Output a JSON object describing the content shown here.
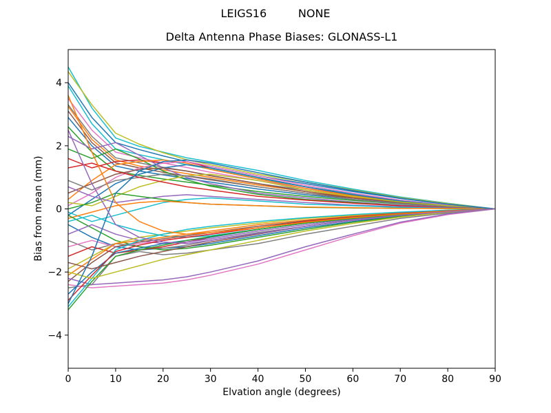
{
  "figure": {
    "suptitle": "LEIGS16         NONE",
    "background": "#ffffff"
  },
  "chart_data": {
    "type": "line",
    "title": "Delta Antenna Phase Biases: GLONASS-L1",
    "xlabel": "Elvation angle (degrees)",
    "ylabel": "Bias from mean (mm)",
    "xlim": [
      0,
      90
    ],
    "ylim": [
      -5.05,
      5.05
    ],
    "xticks": [
      0,
      10,
      20,
      30,
      40,
      50,
      60,
      70,
      80,
      90
    ],
    "yticks": [
      -4,
      -2,
      0,
      2,
      4
    ],
    "ytick_labels": [
      "−4",
      "−2",
      "0",
      "2",
      "4"
    ],
    "grid": false,
    "legend": "none",
    "axis_color": "#000000",
    "line_width": 1.5,
    "description": "Many colored phase-bias curves, one per GLONASS satellite/antenna pair, spread between about -3.2 and +4.5 mm at 0 degrees elevation and converging to 0 mm at 90 degrees.",
    "x": [
      0,
      5,
      10,
      15,
      20,
      25,
      30,
      40,
      50,
      60,
      70,
      80,
      90
    ],
    "series": [
      {
        "color": "#17becf",
        "values": [
          4.5,
          3.2,
          2.25,
          1.98,
          1.8,
          1.62,
          1.49,
          1.22,
          0.9,
          0.63,
          0.38,
          0.18,
          0
        ]
      },
      {
        "color": "#bcbd22",
        "values": [
          4.35,
          3.3,
          2.4,
          2.05,
          1.78,
          1.56,
          1.4,
          1.1,
          0.85,
          0.6,
          0.36,
          0.17,
          0
        ]
      },
      {
        "color": "#1f77b4",
        "values": [
          4.0,
          2.9,
          2.1,
          1.88,
          1.68,
          1.5,
          1.35,
          1.05,
          0.8,
          0.55,
          0.33,
          0.15,
          0
        ]
      },
      {
        "color": "#17becf",
        "values": [
          3.9,
          2.7,
          1.9,
          1.72,
          1.56,
          1.4,
          1.26,
          0.96,
          0.7,
          0.48,
          0.28,
          0.13,
          0
        ]
      },
      {
        "color": "#e377c2",
        "values": [
          3.5,
          2.5,
          1.8,
          1.62,
          1.46,
          1.31,
          1.16,
          0.9,
          0.65,
          0.45,
          0.26,
          0.12,
          0
        ]
      },
      {
        "color": "#7f7f7f",
        "values": [
          3.3,
          2.3,
          1.62,
          1.46,
          1.32,
          1.2,
          1.06,
          0.8,
          0.6,
          0.4,
          0.24,
          0.11,
          0
        ]
      },
      {
        "color": "#ff7f0e",
        "values": [
          3.25,
          2.2,
          1.55,
          1.36,
          1.24,
          1.12,
          1.0,
          0.76,
          0.55,
          0.38,
          0.22,
          0.1,
          0
        ]
      },
      {
        "color": "#8c564b",
        "values": [
          3.1,
          2.1,
          1.46,
          1.3,
          1.16,
          1.04,
          0.92,
          0.7,
          0.5,
          0.34,
          0.2,
          0.09,
          0
        ]
      },
      {
        "color": "#1f77b4",
        "values": [
          2.9,
          2.0,
          1.36,
          1.2,
          1.08,
          0.96,
          0.85,
          0.63,
          0.45,
          0.3,
          0.18,
          0.08,
          0
        ]
      },
      {
        "color": "#2ca02c",
        "values": [
          2.6,
          1.8,
          1.2,
          1.06,
          0.95,
          0.85,
          0.75,
          0.55,
          0.4,
          0.27,
          0.16,
          0.07,
          0
        ]
      },
      {
        "color": "#d62728",
        "values": [
          1.6,
          1.3,
          1.5,
          1.55,
          1.45,
          1.5,
          1.3,
          1.0,
          0.7,
          0.45,
          0.25,
          0.1,
          0
        ]
      },
      {
        "color": "#9467bd",
        "values": [
          2.3,
          1.9,
          2.1,
          1.7,
          1.3,
          1.0,
          0.8,
          0.5,
          0.35,
          0.22,
          0.12,
          0.05,
          0
        ]
      },
      {
        "color": "#2ca02c",
        "values": [
          1.9,
          1.6,
          1.9,
          1.58,
          1.2,
          0.92,
          0.72,
          0.46,
          0.3,
          0.2,
          0.1,
          0.04,
          0
        ]
      },
      {
        "color": "#ff7f0e",
        "values": [
          0.3,
          0.9,
          1.4,
          1.5,
          1.55,
          1.45,
          1.25,
          0.95,
          0.65,
          0.42,
          0.24,
          0.1,
          0
        ]
      },
      {
        "color": "#e377c2",
        "values": [
          0.1,
          0.5,
          1.0,
          1.3,
          1.45,
          1.5,
          1.35,
          1.05,
          0.75,
          0.5,
          0.28,
          0.12,
          0
        ]
      },
      {
        "color": "#1f77b4",
        "values": [
          -0.2,
          0.3,
          0.8,
          1.1,
          1.3,
          1.4,
          1.3,
          1.0,
          0.7,
          0.45,
          0.25,
          0.1,
          0
        ]
      },
      {
        "color": "#8c564b",
        "values": [
          0.5,
          0.8,
          1.1,
          1.25,
          1.3,
          1.2,
          1.05,
          0.8,
          0.55,
          0.35,
          0.2,
          0.08,
          0
        ]
      },
      {
        "color": "#bcbd22",
        "values": [
          0.2,
          0.1,
          0.4,
          0.7,
          0.9,
          1.05,
          1.1,
          0.9,
          0.6,
          0.4,
          0.22,
          0.1,
          0
        ]
      },
      {
        "color": "#7f7f7f",
        "values": [
          0.9,
          0.6,
          0.9,
          1.0,
          1.1,
          1.05,
          0.95,
          0.7,
          0.5,
          0.3,
          0.17,
          0.07,
          0
        ]
      },
      {
        "color": "#d62728",
        "values": [
          1.3,
          1.45,
          1.2,
          1.0,
          0.85,
          0.7,
          0.6,
          0.4,
          0.28,
          0.18,
          0.1,
          0.04,
          0
        ]
      },
      {
        "color": "#9467bd",
        "values": [
          0.7,
          0.4,
          0.2,
          0.3,
          0.4,
          0.45,
          0.4,
          0.3,
          0.2,
          0.12,
          0.07,
          0.03,
          0
        ]
      },
      {
        "color": "#17becf",
        "values": [
          -0.1,
          -0.4,
          -0.2,
          0.0,
          0.2,
          0.3,
          0.35,
          0.25,
          0.15,
          0.1,
          0.05,
          0.02,
          0
        ]
      },
      {
        "color": "#2ca02c",
        "values": [
          0.0,
          0.2,
          0.5,
          0.4,
          0.3,
          0.2,
          0.15,
          0.1,
          0.05,
          0.03,
          0.02,
          0.01,
          0
        ]
      },
      {
        "color": "#ff7f0e",
        "values": [
          -0.3,
          -0.1,
          0.1,
          0.2,
          0.25,
          0.2,
          0.15,
          0.1,
          0.06,
          0.04,
          0.02,
          0.01,
          0
        ]
      },
      {
        "color": "#1f77b4",
        "values": [
          -0.5,
          -0.9,
          -1.2,
          -1.3,
          -1.25,
          -1.2,
          -1.1,
          -0.85,
          -0.6,
          -0.4,
          -0.22,
          -0.1,
          0
        ]
      },
      {
        "color": "#7f7f7f",
        "values": [
          -1.0,
          -1.3,
          -1.1,
          -1.2,
          -1.25,
          -1.15,
          -1.0,
          -0.75,
          -0.55,
          -0.35,
          -0.2,
          -0.09,
          0
        ]
      },
      {
        "color": "#2ca02c",
        "values": [
          -0.2,
          -0.6,
          -1.0,
          -1.2,
          -1.3,
          -1.25,
          -1.15,
          -0.9,
          -0.65,
          -0.42,
          -0.24,
          -0.1,
          0
        ]
      },
      {
        "color": "#d62728",
        "values": [
          -1.5,
          -1.2,
          -1.4,
          -1.3,
          -1.2,
          -1.05,
          -0.9,
          -0.65,
          -0.45,
          -0.3,
          -0.17,
          -0.07,
          0
        ]
      },
      {
        "color": "#9467bd",
        "values": [
          -0.8,
          -0.5,
          -0.8,
          -1.0,
          -1.1,
          -1.05,
          -0.95,
          -0.7,
          -0.5,
          -0.32,
          -0.18,
          -0.08,
          0
        ]
      },
      {
        "color": "#bcbd22",
        "values": [
          -1.9,
          -1.5,
          -1.1,
          -0.9,
          -0.8,
          -0.7,
          -0.6,
          -0.45,
          -0.3,
          -0.2,
          -0.12,
          -0.05,
          0
        ]
      },
      {
        "color": "#17becf",
        "values": [
          -0.4,
          -0.2,
          -0.5,
          -0.7,
          -0.85,
          -0.9,
          -0.85,
          -0.65,
          -0.45,
          -0.3,
          -0.17,
          -0.07,
          0
        ]
      },
      {
        "color": "#e377c2",
        "values": [
          -1.2,
          -1.0,
          -1.2,
          -1.1,
          -1.0,
          -0.9,
          -0.8,
          -0.6,
          -0.4,
          -0.26,
          -0.15,
          -0.06,
          0
        ]
      },
      {
        "color": "#ff7f0e",
        "values": [
          -2.1,
          -1.6,
          -1.1,
          -1.0,
          -0.9,
          -0.8,
          -0.7,
          -0.5,
          -0.35,
          -0.23,
          -0.13,
          -0.06,
          0
        ]
      },
      {
        "color": "#8c564b",
        "values": [
          -2.3,
          -1.7,
          -1.2,
          -1.05,
          -0.95,
          -0.85,
          -0.75,
          -0.55,
          -0.38,
          -0.25,
          -0.14,
          -0.06,
          0
        ]
      },
      {
        "color": "#7f7f7f",
        "values": [
          -2.5,
          -2.4,
          -1.5,
          -1.35,
          -1.45,
          -1.4,
          -1.3,
          -1.1,
          -0.8,
          -0.55,
          -0.3,
          -0.13,
          0
        ]
      },
      {
        "color": "#e377c2",
        "values": [
          -2.4,
          -2.5,
          -2.45,
          -2.4,
          -2.35,
          -2.25,
          -2.1,
          -1.75,
          -1.3,
          -0.85,
          -0.45,
          -0.18,
          0
        ]
      },
      {
        "color": "#9467bd",
        "values": [
          -2.2,
          -2.4,
          -2.35,
          -2.3,
          -2.25,
          -2.15,
          -2.0,
          -1.65,
          -1.2,
          -0.8,
          -0.42,
          -0.16,
          0
        ]
      },
      {
        "color": "#1f77b4",
        "values": [
          -2.7,
          -2.0,
          -1.4,
          -1.25,
          -1.1,
          -1.0,
          -0.9,
          -0.65,
          -0.45,
          -0.3,
          -0.17,
          -0.07,
          0
        ]
      },
      {
        "color": "#17becf",
        "values": [
          -3.1,
          -2.2,
          -1.3,
          -1.0,
          -0.8,
          -0.65,
          -0.55,
          -0.4,
          -0.28,
          -0.18,
          -0.1,
          -0.04,
          0
        ]
      },
      {
        "color": "#d62728",
        "values": [
          -2.9,
          -2.1,
          -1.35,
          -1.15,
          -1.0,
          -0.9,
          -0.8,
          -0.6,
          -0.4,
          -0.27,
          -0.15,
          -0.06,
          0
        ]
      },
      {
        "color": "#2ca02c",
        "values": [
          -3.2,
          -2.3,
          -1.5,
          -1.3,
          -1.15,
          -1.0,
          -0.88,
          -0.65,
          -0.45,
          -0.3,
          -0.17,
          -0.07,
          0
        ]
      },
      {
        "color": "#8c564b",
        "values": [
          -1.7,
          -1.9,
          -1.7,
          -1.5,
          -1.35,
          -1.2,
          -1.05,
          -0.8,
          -0.55,
          -0.36,
          -0.2,
          -0.08,
          0
        ]
      },
      {
        "color": "#bcbd22",
        "values": [
          -2.0,
          -2.2,
          -2.0,
          -1.8,
          -1.6,
          -1.45,
          -1.3,
          -1.0,
          -0.7,
          -0.46,
          -0.26,
          -0.1,
          0
        ]
      },
      {
        "color": "#1f77b4",
        "values": [
          -3.0,
          -1.5,
          0.5,
          1.2,
          1.5,
          1.55,
          1.45,
          1.15,
          0.85,
          0.58,
          0.34,
          0.15,
          0
        ]
      },
      {
        "color": "#ff7f0e",
        "values": [
          3.6,
          1.8,
          0.2,
          -0.4,
          -0.7,
          -0.8,
          -0.75,
          -0.6,
          -0.42,
          -0.28,
          -0.16,
          -0.07,
          0
        ]
      },
      {
        "color": "#9467bd",
        "values": [
          2.5,
          0.8,
          -0.5,
          -0.9,
          -1.05,
          -1.1,
          -1.0,
          -0.78,
          -0.55,
          -0.36,
          -0.2,
          -0.09,
          0
        ]
      }
    ]
  }
}
